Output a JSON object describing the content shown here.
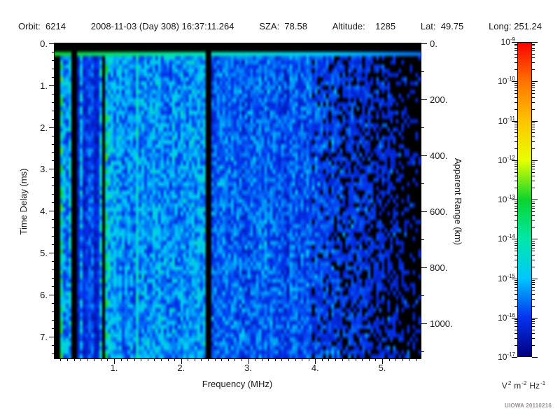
{
  "header": {
    "orbit": "Orbit:  6214",
    "datetime": "2008-11-03 (Day 308) 16:37:11.264",
    "sza": "SZA:  78.58",
    "altitude": "Altitude:    1285",
    "lat": "Lat:  49.75",
    "long": "Long: 251.24"
  },
  "axes": {
    "x": {
      "title": "Frequency (MHz)",
      "tick_values": [
        1,
        2,
        3,
        4,
        5
      ],
      "tick_labels": [
        "1.",
        "2.",
        "3.",
        "4.",
        "5."
      ],
      "minor_step": 0.1,
      "range": [
        0.11,
        5.57
      ]
    },
    "left": {
      "title": "Time Delay (ms)",
      "tick_values": [
        0,
        1,
        2,
        3,
        4,
        5,
        6,
        7
      ],
      "tick_labels": [
        "0.",
        "1.",
        "2.",
        "3.",
        "4.",
        "5.",
        "6.",
        "7."
      ],
      "minor_step": 0.2,
      "range": [
        0,
        7.53
      ]
    },
    "right": {
      "title": "Apparent Range (km)",
      "tick_values": [
        0,
        200,
        400,
        600,
        800,
        1000
      ],
      "tick_labels": [
        "0.",
        "200.",
        "400.",
        "600.",
        "800.",
        "1000."
      ],
      "minor_step": 100,
      "range": [
        0,
        1125
      ]
    }
  },
  "colorbar": {
    "mantissa": "10",
    "tick_exponents": [
      "-9",
      "-10",
      "-11",
      "-12",
      "-13",
      "-14",
      "-15",
      "-16",
      "-17"
    ],
    "units_tokens": [
      {
        "t": "V",
        "sup": false
      },
      {
        "t": "2",
        "sup": true
      },
      {
        "t": "m",
        "sup": false
      },
      {
        "t": "-2",
        "sup": true
      },
      {
        "t": "Hz",
        "sup": false
      },
      {
        "t": "-1",
        "sup": true
      }
    ],
    "stops": [
      {
        "p": 0.0,
        "c": "#000080"
      },
      {
        "p": 0.125,
        "c": "#0434f0"
      },
      {
        "p": 0.25,
        "c": "#00c8fa"
      },
      {
        "p": 0.375,
        "c": "#00e8a8"
      },
      {
        "p": 0.5,
        "c": "#0cd42c"
      },
      {
        "p": 0.625,
        "c": "#e8ff00"
      },
      {
        "p": 0.75,
        "c": "#ffc400"
      },
      {
        "p": 0.875,
        "c": "#ff7400"
      },
      {
        "p": 1.0,
        "c": "#fa0200"
      }
    ]
  },
  "credit": "UIOWA 20110216",
  "chart_data": {
    "type": "heatmap",
    "title": "Radar sounder ionogram — Orbit 6214, 2008-11-03 (Day 308) 16:37:11.264, SZA 78.58, Altitude 1285, Lat 49.75, Long 251.24",
    "xlabel": "Frequency (MHz)",
    "x_range_mhz": [
      0.11,
      5.57
    ],
    "x_major_ticks": [
      1,
      2,
      3,
      4,
      5
    ],
    "ylabel_left": "Time Delay (ms)",
    "y_left_range_ms": [
      0,
      7.53
    ],
    "y_left_major_ticks": [
      0,
      1,
      2,
      3,
      4,
      5,
      6,
      7
    ],
    "ylabel_right": "Apparent Range (km)",
    "y_right_range_km": [
      0,
      1125
    ],
    "y_right_major_ticks": [
      0,
      200,
      400,
      600,
      800,
      1000
    ],
    "color_scale": {
      "type": "log",
      "min": 1e-17,
      "max": 1e-09,
      "units": "V² m⁻² Hz⁻¹",
      "colormap": "rainbow: dark blue → blue → cyan → green → yellow → orange → red"
    },
    "features": [
      "Black band across the top of the ionogram (0 to ~0.18 ms delay)",
      "Bright cyan-green horizontal band at ~0.2 ms delay across all frequencies (transmit pulse), fading bluer toward high frequency",
      "Strong vertical interference striping (cyan/dark blue) below ~0.95 MHz",
      "Black vertical gap near 0.4 MHz",
      "Bright cyan vertical stripe near 1.33 MHz",
      "Narrow black vertical line near 2.4 MHz crossing the full delay range",
      "Diffuse blue/cyan noise background ~1-4 MHz at roughly 1e-16 to 1e-15 V^2 m^-2 Hz^-1",
      "Signal drops below 1e-17 (black patches) above ~4 MHz, increasingly black toward 5.5 MHz"
    ],
    "spectrogram_model": {
      "seed": 7,
      "top_black_rows_ms": [
        0,
        0.18
      ],
      "surface_line_ms": 0.2,
      "regions": [
        {
          "kind": "gap",
          "f0": 0.36,
          "f1": 0.46,
          "note": "black vertical gap ~0.4 MHz"
        },
        {
          "kind": "gap",
          "f0": 2.35,
          "f1": 2.44,
          "note": "black vertical line ~2.4 MHz"
        },
        {
          "kind": "bright-line",
          "f0": 1.315,
          "f1": 1.355,
          "base": 0.3,
          "note": "bright stripe ~1.33 MHz"
        },
        {
          "kind": "stripes",
          "f0": 0.1,
          "f1": 0.95,
          "note": "vertical interference striping"
        },
        {
          "kind": "noise",
          "f0": 0.95,
          "f1": 2.35,
          "base": 0.205,
          "jitter": 0.09,
          "cut": 0.035
        },
        {
          "kind": "noise",
          "f0": 2.44,
          "f1": 3.9,
          "base": 0.15,
          "jitter": 0.075,
          "cut": 0.05
        },
        {
          "kind": "fade",
          "f0": 3.9,
          "f1": 5.6,
          "base": 0.13,
          "jitter": 0.07,
          "cut": 0.075,
          "slope": 0.05
        }
      ]
    }
  }
}
